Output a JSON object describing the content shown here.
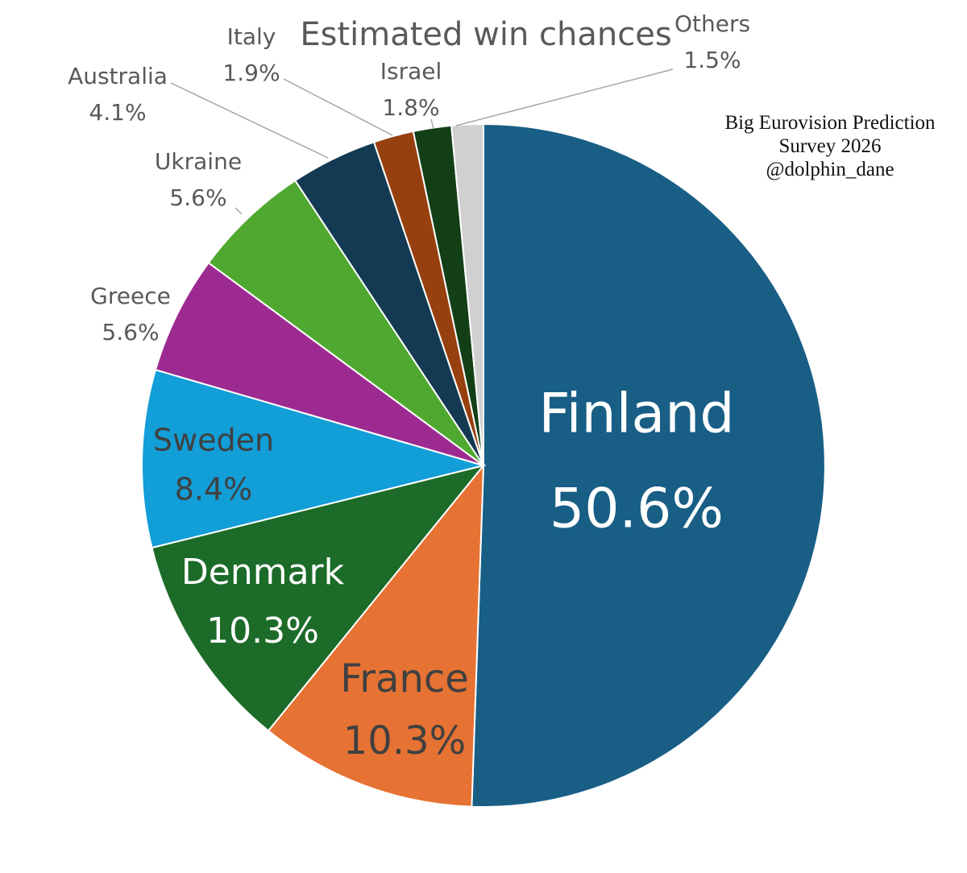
{
  "chart_data": {
    "type": "pie",
    "title": "Estimated win chances",
    "start_angle_deg": 0,
    "direction": "clockwise",
    "slices": [
      {
        "label": "Finland",
        "value": 50.6,
        "value_label": "50.6%",
        "color": "#185e85"
      },
      {
        "label": "France",
        "value": 10.3,
        "value_label": "10.3%",
        "color": "#e67233"
      },
      {
        "label": "Denmark",
        "value": 10.3,
        "value_label": "10.3%",
        "color": "#1c6b28"
      },
      {
        "label": "Sweden",
        "value": 8.4,
        "value_label": "8.4%",
        "color": "#129ed7"
      },
      {
        "label": "Greece",
        "value": 5.6,
        "value_label": "5.6%",
        "color": "#9d2a91"
      },
      {
        "label": "Ukraine",
        "value": 5.6,
        "value_label": "5.6%",
        "color": "#4fa82f"
      },
      {
        "label": "Australia",
        "value": 4.1,
        "value_label": "4.1%",
        "color": "#133a52"
      },
      {
        "label": "Italy",
        "value": 1.9,
        "value_label": "1.9%",
        "color": "#97400f"
      },
      {
        "label": "Israel",
        "value": 1.8,
        "value_label": "1.8%",
        "color": "#133f17"
      },
      {
        "label": "Others",
        "value": 1.5,
        "value_label": "1.5%",
        "color": "#d0d0d0"
      }
    ]
  },
  "credit": {
    "line1": "Big Eurovision Prediction",
    "line2": "Survey 2026",
    "line3": "@dolphin_dane"
  }
}
